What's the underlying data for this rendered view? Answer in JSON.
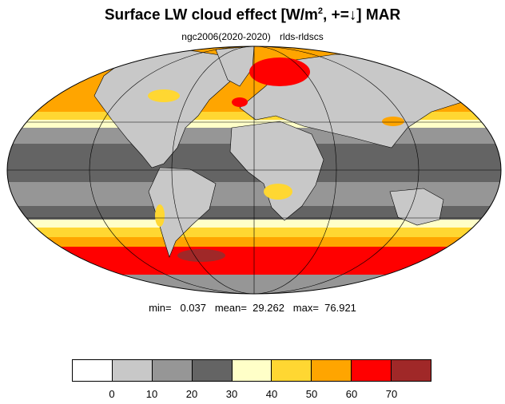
{
  "title": {
    "main": "Surface LW cloud effect [W/m",
    "sup": "2",
    "tail": ", +=↓]  MAR"
  },
  "subtitle": {
    "left": "ngc2006(2020-2020)",
    "right": "rlds-rldscs"
  },
  "stats": {
    "text": "min=   0.037   mean=  29.262   max=  76.921"
  },
  "colorbar": {
    "colors": [
      "#ffffff",
      "#c8c8c8",
      "#969696",
      "#646464",
      "#ffffc8",
      "#ffd732",
      "#ffa500",
      "#ff0000",
      "#a02828"
    ],
    "tick_labels": [
      "0",
      "10",
      "20",
      "30",
      "40",
      "50",
      "60",
      "70"
    ]
  },
  "map": {
    "projection": "Mollweide",
    "gridlines": true,
    "ocean_fill": "#646464",
    "land_fill": "#c8c8c8"
  }
}
